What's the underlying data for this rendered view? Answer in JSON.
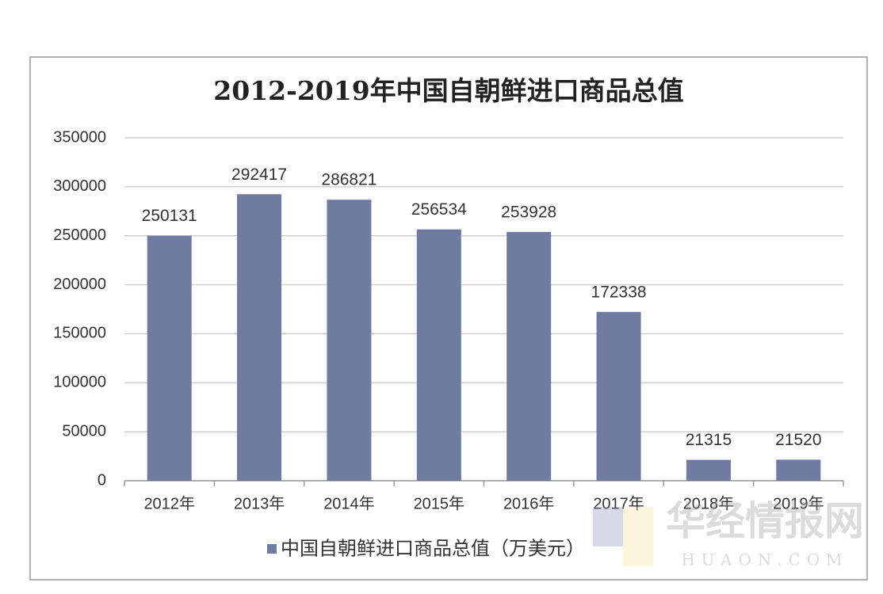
{
  "chart_data": {
    "type": "bar",
    "title": "2012-2019年中国自朝鲜进口商品总值",
    "categories": [
      "2012年",
      "2013年",
      "2014年",
      "2015年",
      "2016年",
      "2017年",
      "2018年",
      "2019年"
    ],
    "series": [
      {
        "name": "中国自朝鲜进口商品总值（万美元）",
        "color": "#6f7ba0",
        "values": [
          250131,
          292417,
          286821,
          256534,
          253928,
          172338,
          21315,
          21520
        ]
      }
    ],
    "ylim": [
      0,
      350000
    ],
    "yticks": [
      0,
      50000,
      100000,
      150000,
      200000,
      250000,
      300000,
      350000
    ],
    "grid": true,
    "legend": "bottom",
    "watermark": {
      "name": "华经情报网",
      "site": "HUAON.COM"
    }
  }
}
